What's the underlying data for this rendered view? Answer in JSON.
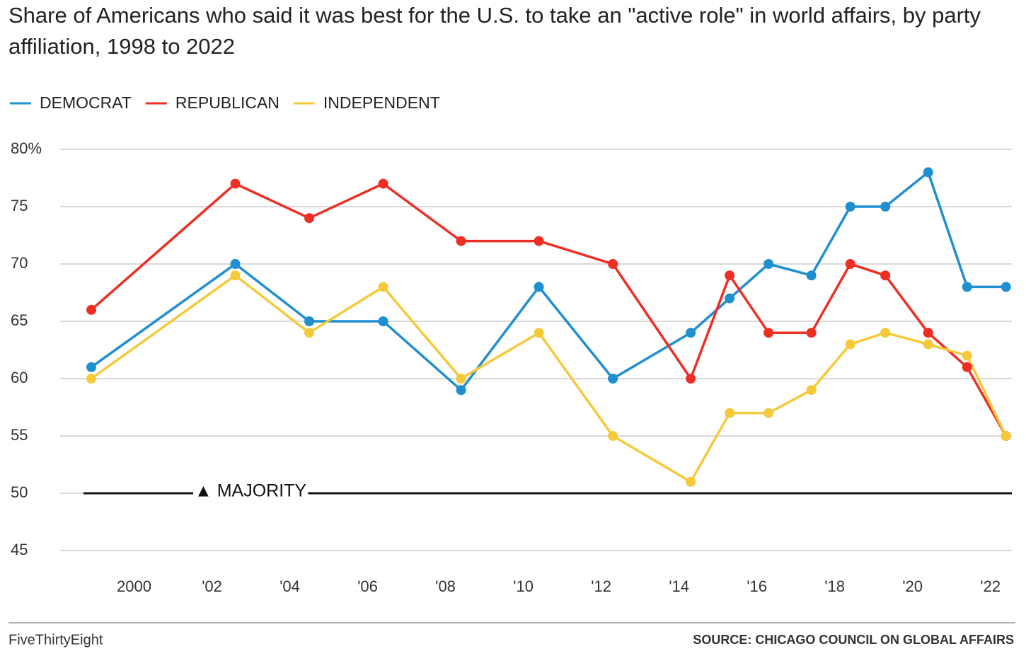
{
  "chart_data": {
    "type": "line",
    "title": "Share of Americans who said it was best for the U.S. to take an \"active role\" in world affairs, by party affiliation, 1998 to 2022",
    "x": [
      1998.9,
      2002.6,
      2004.5,
      2006.4,
      2008.4,
      2010.4,
      2012.3,
      2014.3,
      2015.3,
      2016.3,
      2017.4,
      2018.4,
      2019.3,
      2020.4,
      2021.4,
      2022.4
    ],
    "series": [
      {
        "name": "DEMOCRAT",
        "color": "#1f8fcf",
        "values": [
          61,
          70,
          65,
          65,
          59,
          68,
          60,
          64,
          67,
          70,
          69,
          75,
          75,
          78,
          68,
          68
        ]
      },
      {
        "name": "REPUBLICAN",
        "color": "#ed2e24",
        "values": [
          66,
          77,
          74,
          77,
          72,
          72,
          70,
          60,
          69,
          64,
          64,
          70,
          69,
          64,
          61,
          55
        ]
      },
      {
        "name": "INDEPENDENT",
        "color": "#f5ca3a",
        "values": [
          60,
          69,
          64,
          68,
          60,
          64,
          55,
          51,
          57,
          57,
          59,
          63,
          64,
          63,
          62,
          55
        ]
      }
    ],
    "xlim": [
      1998.1,
      2022.55
    ],
    "xticks": [
      2000,
      {
        "value": 2002,
        "label": "'02"
      },
      {
        "value": 2004,
        "label": "'04"
      },
      {
        "value": 2006,
        "label": "'06"
      },
      {
        "value": 2008,
        "label": "'08"
      },
      {
        "value": 2010,
        "label": "'10"
      },
      {
        "value": 2012,
        "label": "'12"
      },
      {
        "value": 2014,
        "label": "'14"
      },
      {
        "value": 2016,
        "label": "'16"
      },
      {
        "value": 2018,
        "label": "'18"
      },
      {
        "value": 2020,
        "label": "'20"
      },
      {
        "value": 2022,
        "label": "'22"
      }
    ],
    "ylim": [
      45,
      80
    ],
    "yticks": [
      45,
      50,
      55,
      60,
      65,
      70,
      75,
      {
        "value": 80,
        "label": "80%"
      }
    ],
    "grid": true,
    "reference_line": {
      "value": 50,
      "label": "▲ MAJORITY"
    },
    "source": "SOURCE: CHICAGO COUNCIL ON GLOBAL AFFAIRS",
    "credit": "FiveThirtyEight"
  }
}
